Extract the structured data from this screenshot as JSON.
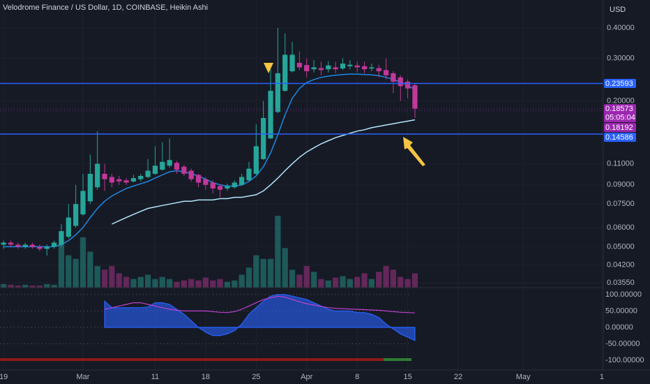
{
  "chart_data": {
    "type": "candlestick",
    "title": "Velodrome Finance / US Dollar, 1D, COINBASE, Heikin Ashi",
    "currency": "USD",
    "log_scale": true,
    "grid": true,
    "up_color": "#26a69a",
    "down_color": "#c2379a",
    "x": [
      0,
      1,
      2,
      3,
      4,
      5,
      6,
      7,
      8,
      9,
      10,
      11,
      12,
      13,
      14,
      15,
      16,
      17,
      18,
      19,
      20,
      21,
      22,
      23,
      24,
      25,
      26,
      27,
      28,
      29,
      30,
      31,
      32,
      33,
      34,
      35,
      36,
      37,
      38,
      39,
      40,
      41,
      42,
      43,
      44,
      45,
      46,
      47,
      48,
      49,
      50,
      51,
      52,
      53,
      54,
      55,
      56,
      57
    ],
    "open": [
      0.051,
      0.052,
      0.051,
      0.05,
      0.051,
      0.05,
      0.049,
      0.05,
      0.051,
      0.055,
      0.061,
      0.068,
      0.077,
      0.088,
      0.1,
      0.097,
      0.095,
      0.094,
      0.093,
      0.095,
      0.097,
      0.1,
      0.104,
      0.108,
      0.111,
      0.107,
      0.103,
      0.099,
      0.095,
      0.092,
      0.089,
      0.087,
      0.088,
      0.09,
      0.094,
      0.1,
      0.115,
      0.14,
      0.18,
      0.22,
      0.265,
      0.287,
      0.281,
      0.27,
      0.273,
      0.27,
      0.275,
      0.272,
      0.278,
      0.28,
      0.278,
      0.272,
      0.273,
      0.268,
      0.26,
      0.25,
      0.24,
      0.232
    ],
    "high": [
      0.053,
      0.053,
      0.052,
      0.052,
      0.052,
      0.051,
      0.051,
      0.053,
      0.062,
      0.075,
      0.09,
      0.1,
      0.12,
      0.15,
      0.11,
      0.1,
      0.098,
      0.096,
      0.099,
      0.1,
      0.115,
      0.13,
      0.135,
      0.14,
      0.113,
      0.109,
      0.105,
      0.1,
      0.097,
      0.094,
      0.091,
      0.091,
      0.094,
      0.1,
      0.112,
      0.16,
      0.2,
      0.27,
      0.4,
      0.38,
      0.35,
      0.32,
      0.3,
      0.295,
      0.29,
      0.292,
      0.29,
      0.3,
      0.295,
      0.29,
      0.29,
      0.285,
      0.282,
      0.3,
      0.265,
      0.255,
      0.245,
      0.236
    ],
    "low": [
      0.049,
      0.05,
      0.049,
      0.049,
      0.049,
      0.048,
      0.046,
      0.049,
      0.05,
      0.054,
      0.06,
      0.067,
      0.075,
      0.086,
      0.085,
      0.088,
      0.09,
      0.09,
      0.092,
      0.093,
      0.096,
      0.099,
      0.103,
      0.106,
      0.1,
      0.098,
      0.093,
      0.088,
      0.086,
      0.083,
      0.08,
      0.085,
      0.087,
      0.089,
      0.093,
      0.099,
      0.114,
      0.139,
      0.178,
      0.218,
      0.262,
      0.268,
      0.25,
      0.262,
      0.255,
      0.262,
      0.26,
      0.268,
      0.27,
      0.262,
      0.26,
      0.265,
      0.25,
      0.245,
      0.215,
      0.2,
      0.205,
      0.17
    ],
    "close": [
      0.052,
      0.051,
      0.05,
      0.051,
      0.05,
      0.049,
      0.05,
      0.052,
      0.058,
      0.066,
      0.075,
      0.085,
      0.1,
      0.11,
      0.095,
      0.092,
      0.093,
      0.092,
      0.096,
      0.098,
      0.103,
      0.108,
      0.112,
      0.114,
      0.104,
      0.1,
      0.095,
      0.092,
      0.09,
      0.087,
      0.086,
      0.089,
      0.092,
      0.097,
      0.105,
      0.13,
      0.17,
      0.22,
      0.26,
      0.31,
      0.31,
      0.275,
      0.265,
      0.275,
      0.268,
      0.28,
      0.27,
      0.285,
      0.282,
      0.275,
      0.27,
      0.275,
      0.265,
      0.255,
      0.24,
      0.23,
      0.225,
      0.18573
    ],
    "volume": [
      50,
      40,
      30,
      40,
      30,
      30,
      50,
      40,
      600,
      450,
      400,
      700,
      500,
      300,
      250,
      300,
      200,
      150,
      120,
      150,
      180,
      120,
      150,
      120,
      80,
      100,
      120,
      100,
      140,
      100,
      120,
      80,
      100,
      180,
      280,
      450,
      400,
      400,
      1000,
      550,
      250,
      180,
      300,
      220,
      120,
      100,
      140,
      160,
      120,
      150,
      200,
      120,
      220,
      300,
      250,
      150,
      120,
      200
    ],
    "vlim": [
      0,
      4000
    ],
    "lines": [
      {
        "color": "#1e88e5",
        "values": [
          0.05,
          0.05,
          0.05,
          0.05,
          0.05,
          0.05,
          0.05,
          0.05,
          0.051,
          0.053,
          0.056,
          0.06,
          0.066,
          0.072,
          0.077,
          0.081,
          0.084,
          0.087,
          0.089,
          0.091,
          0.093,
          0.096,
          0.099,
          0.102,
          0.103,
          0.102,
          0.1,
          0.098,
          0.095,
          0.092,
          0.09,
          0.089,
          0.089,
          0.09,
          0.093,
          0.098,
          0.107,
          0.122,
          0.145,
          0.175,
          0.205,
          0.225,
          0.238,
          0.245,
          0.25,
          0.253,
          0.255,
          0.257,
          0.258,
          0.258,
          0.257,
          0.256,
          0.254,
          0.25,
          0.245,
          0.239,
          0.232,
          0.222
        ]
      },
      {
        "color": "#b3e5fc",
        "values": [
          null,
          null,
          null,
          null,
          null,
          null,
          null,
          null,
          null,
          null,
          null,
          null,
          null,
          null,
          null,
          0.062,
          0.064,
          0.066,
          0.068,
          0.07,
          0.072,
          0.073,
          0.074,
          0.075,
          0.076,
          0.077,
          0.077,
          0.078,
          0.078,
          0.078,
          0.079,
          0.079,
          0.08,
          0.08,
          0.081,
          0.082,
          0.085,
          0.09,
          0.096,
          0.103,
          0.11,
          0.117,
          0.123,
          0.128,
          0.133,
          0.137,
          0.141,
          0.144,
          0.147,
          0.15,
          0.152,
          0.155,
          0.157,
          0.159,
          0.161,
          0.163,
          0.165,
          0.167
        ]
      }
    ],
    "xlim": [
      -0.5,
      83.1
    ],
    "xticks": [
      {
        "value": 0,
        "label": "19"
      },
      {
        "value": 11,
        "label": "Mar"
      },
      {
        "value": 21,
        "label": "11"
      },
      {
        "value": 28,
        "label": "18"
      },
      {
        "value": 35,
        "label": "25"
      },
      {
        "value": 42,
        "label": "Apr"
      },
      {
        "value": 49,
        "label": "8"
      },
      {
        "value": 56,
        "label": "15"
      },
      {
        "value": 63,
        "label": "22"
      },
      {
        "value": 72,
        "label": "May"
      },
      {
        "value": 82.9,
        "label": "1"
      }
    ],
    "ylim": [
      0.0339,
      0.5215
    ],
    "yticks": [
      {
        "value": 0.4,
        "label": "0.40000"
      },
      {
        "value": 0.3,
        "label": "0.30000"
      },
      {
        "value": 0.2,
        "label": "0.20000"
      },
      {
        "value": 0.11,
        "label": "0.11000"
      },
      {
        "value": 0.09,
        "label": "0.09000"
      },
      {
        "value": 0.075,
        "label": "0.07500"
      },
      {
        "value": 0.06,
        "label": "0.06000"
      },
      {
        "value": 0.05,
        "label": "0.05000"
      },
      {
        "value": 0.042,
        "label": "0.04200"
      },
      {
        "value": 0.0355,
        "label": "0.03550"
      }
    ],
    "price_labels": [
      {
        "value": 0.23593,
        "color": "#2962ff",
        "line": true
      },
      {
        "value": 0.18573,
        "color": "#9c27b0",
        "countdown": "05:05:04"
      },
      {
        "value": 0.18192,
        "color": "#9c27b0"
      },
      {
        "value": 0.14586,
        "color": "#2962ff",
        "line": true
      }
    ],
    "oscillator": {
      "ylim": [
        -130,
        121
      ],
      "yticks": [
        {
          "value": 100,
          "label": "100.00000"
        },
        {
          "value": 50,
          "label": "50.00000"
        },
        {
          "value": 0,
          "label": "0.00000"
        },
        {
          "value": -50,
          "label": "-50.00000"
        },
        {
          "value": -100,
          "label": "-100.00000"
        }
      ],
      "series": [
        {
          "color": "#2962ff",
          "values": [
            null,
            null,
            null,
            null,
            null,
            null,
            null,
            null,
            null,
            null,
            null,
            null,
            null,
            null,
            80,
            60,
            60,
            60,
            60,
            60,
            62,
            75,
            75,
            70,
            55,
            40,
            20,
            0,
            -15,
            -25,
            -25,
            -20,
            -10,
            10,
            40,
            60,
            80,
            95,
            100,
            100,
            95,
            90,
            85,
            75,
            65,
            55,
            50,
            50,
            50,
            45,
            45,
            40,
            30,
            10,
            -5,
            -20,
            -30,
            -40
          ]
        },
        {
          "color": "#c040d0",
          "values": [
            null,
            null,
            null,
            null,
            null,
            null,
            null,
            null,
            null,
            null,
            null,
            null,
            null,
            null,
            55,
            60,
            65,
            70,
            75,
            75,
            70,
            65,
            60,
            55,
            52,
            50,
            50,
            50,
            50,
            48,
            46,
            45,
            48,
            55,
            65,
            75,
            85,
            90,
            95,
            92,
            85,
            78,
            72,
            68,
            64,
            60,
            58,
            57,
            56,
            55,
            54,
            53,
            52,
            50,
            48,
            46,
            45,
            44
          ]
        }
      ]
    }
  }
}
